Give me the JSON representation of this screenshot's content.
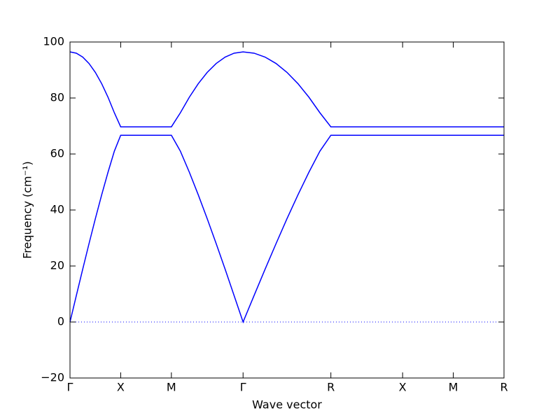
{
  "chart_data": {
    "type": "line",
    "xlabel": "Wave vector",
    "ylabel": "Frequency (cm⁻¹)",
    "x": [
      0,
      0.125,
      0.25,
      0.375,
      0.5,
      0.625,
      0.75,
      0.875,
      1,
      1.5,
      2,
      2.177,
      2.354,
      2.53,
      2.707,
      2.884,
      3.061,
      3.237,
      3.414,
      3.631,
      3.847,
      4.064,
      4.28,
      4.497,
      4.713,
      4.93,
      5.146,
      6.561,
      7.561,
      8.561
    ],
    "series": [
      {
        "color": "#0000ff",
        "values": [
          0,
          9.45,
          18.8,
          27.97,
          36.88,
          45.42,
          53.5,
          61.02,
          66.7,
          66.7,
          66.7,
          61.02,
          53.5,
          45.42,
          36.88,
          27.97,
          18.8,
          9.45,
          0,
          9.45,
          18.8,
          27.97,
          36.88,
          45.42,
          53.5,
          61.02,
          66.7,
          66.7,
          66.7,
          66.7
        ]
      },
      {
        "color": "#0000ff",
        "values": [
          96.47,
          96.01,
          94.62,
          92.33,
          89.15,
          85.11,
          80.28,
          74.72,
          69.7,
          69.7,
          69.7,
          74.72,
          80.28,
          85.11,
          89.15,
          92.33,
          94.62,
          96.01,
          96.47,
          96.01,
          94.62,
          92.33,
          89.15,
          85.11,
          80.28,
          74.72,
          69.7,
          69.7,
          69.7,
          69.7
        ]
      }
    ],
    "xlim": [
      0,
      8.561
    ],
    "xticks": [
      {
        "value": 0,
        "label": "Γ"
      },
      {
        "value": 1,
        "label": "X"
      },
      {
        "value": 2,
        "label": "M"
      },
      {
        "value": 3.414,
        "label": "Γ"
      },
      {
        "value": 5.146,
        "label": "R"
      },
      {
        "value": 6.561,
        "label": "X"
      },
      {
        "value": 7.561,
        "label": "M"
      },
      {
        "value": 8.561,
        "label": "R"
      }
    ],
    "ylim": [
      -20,
      100
    ],
    "yticks": [
      {
        "value": -20,
        "label": "−20"
      },
      0,
      20,
      40,
      60,
      80,
      100
    ],
    "hline": 0,
    "hline_color": "#0000ff",
    "grid": false
  }
}
